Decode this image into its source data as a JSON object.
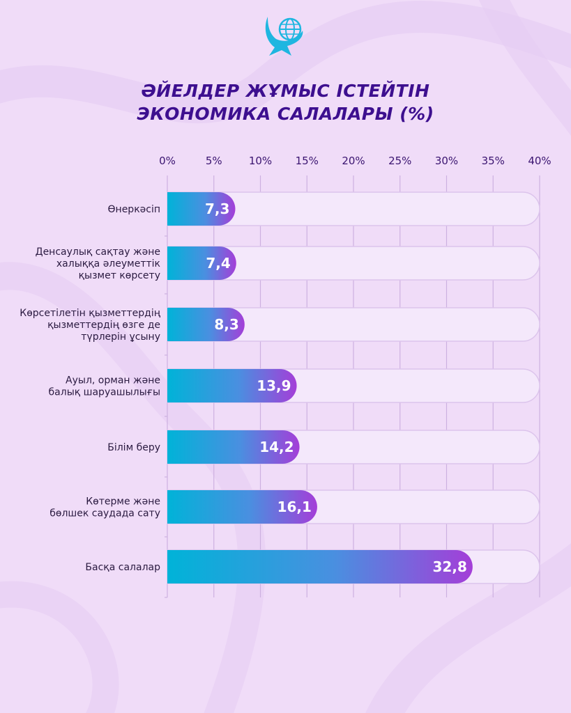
{
  "colors": {
    "background": "#f0dcf8",
    "title": "#3d0f8f",
    "bar_start": "#00b3d8",
    "bar_end": "#a43ed8",
    "track": "#f4e8fb"
  },
  "logo_icon": "eagle-globe-icon",
  "title_line1": "ӘЙЕЛДЕР ЖҰМЫС ІСТЕЙТІН",
  "title_line2": "ЭКОНОМИКА САЛАЛАРЫ (%)",
  "chart_data": {
    "type": "bar",
    "orientation": "horizontal",
    "title": "ӘЙЕЛДЕР ЖҰМЫС ІСТЕЙТІН ЭКОНОМИКА САЛАЛАРЫ (%)",
    "xlim": [
      0,
      40
    ],
    "x_ticks": [
      "0%",
      "5%",
      "10%",
      "15%",
      "20%",
      "25%",
      "30%",
      "35%",
      "40%"
    ],
    "grid": true,
    "categories": [
      [
        "Өнеркәсіп"
      ],
      [
        "Денсаулық сақтау және",
        "халыққа әлеуметтік",
        "қызмет көрсету"
      ],
      [
        "Көрсетілетін қызметтердің",
        "қызметтердің өзге де",
        "түрлерін ұсыну"
      ],
      [
        "Ауыл, орман және",
        "балық шаруашылығы"
      ],
      [
        "Білім беру"
      ],
      [
        "Көтерме және",
        "бөлшек саудада сату"
      ],
      [
        "Басқа салалар"
      ]
    ],
    "values": [
      7.3,
      7.4,
      8.3,
      13.9,
      14.2,
      16.1,
      32.8
    ],
    "value_labels": [
      "7,3",
      "7,4",
      "8,3",
      "13,9",
      "14,2",
      "16,1",
      "32,8"
    ]
  }
}
